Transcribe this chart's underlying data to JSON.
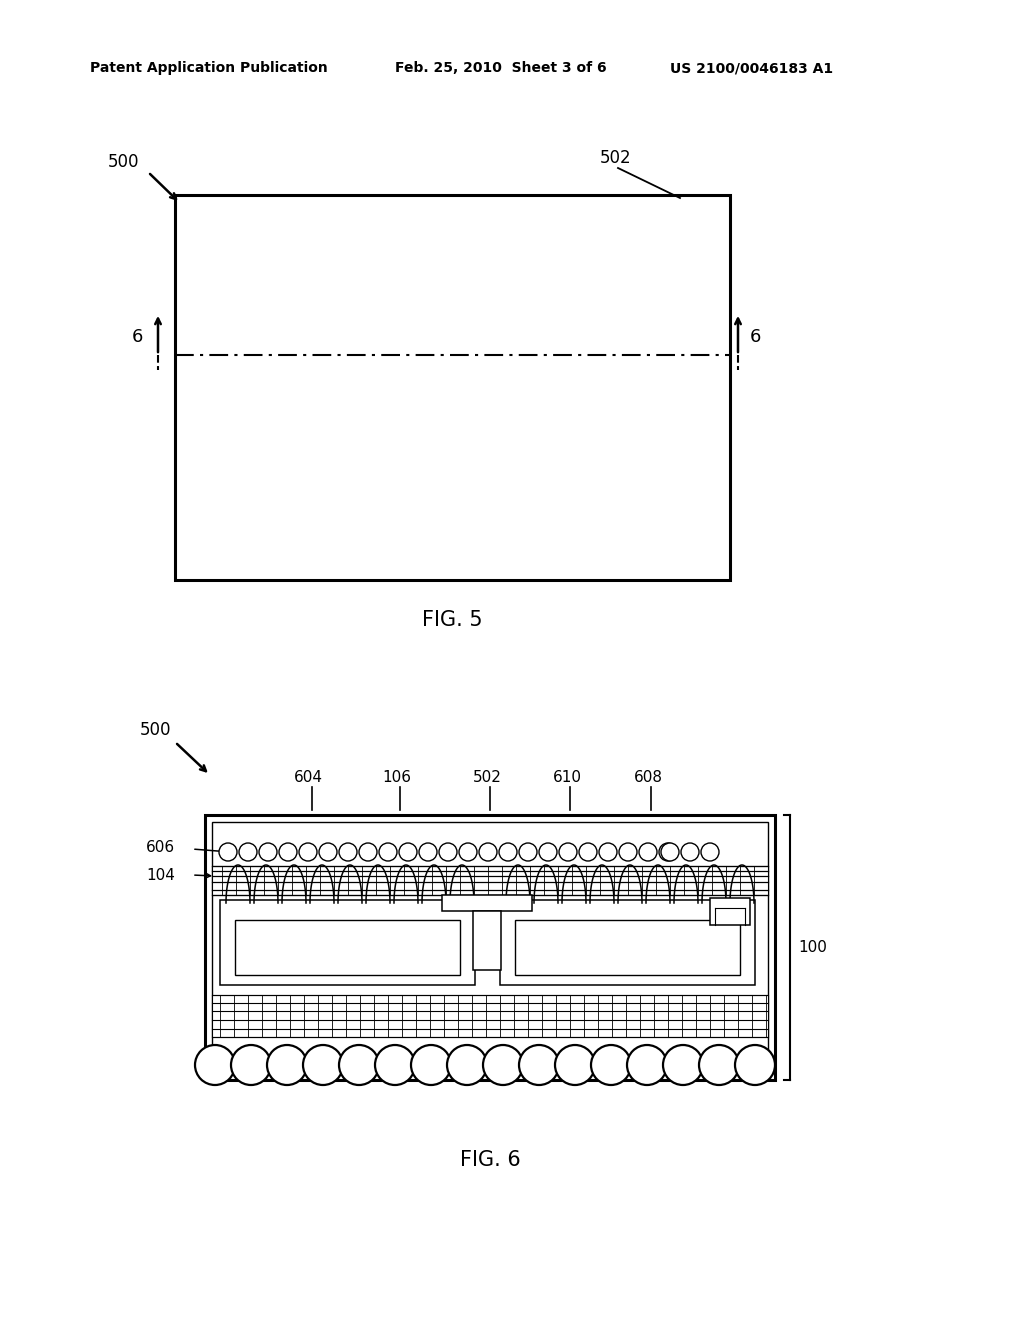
{
  "bg_color": "#ffffff",
  "header_left": "Patent Application Publication",
  "header_mid": "Feb. 25, 2010  Sheet 3 of 6",
  "header_right": "US 2100/0046183 A1",
  "fig5_label": "FIG. 5",
  "fig6_label": "FIG. 6",
  "label_500_fig5": "500",
  "label_502_fig5": "502",
  "label_6_left": "6",
  "label_6_right": "6",
  "label_500_fig6": "500",
  "label_604": "604",
  "label_106": "106",
  "label_502_fig6": "502",
  "label_610": "610",
  "label_608": "608",
  "label_606": "606",
  "label_104": "104",
  "label_100": "100"
}
